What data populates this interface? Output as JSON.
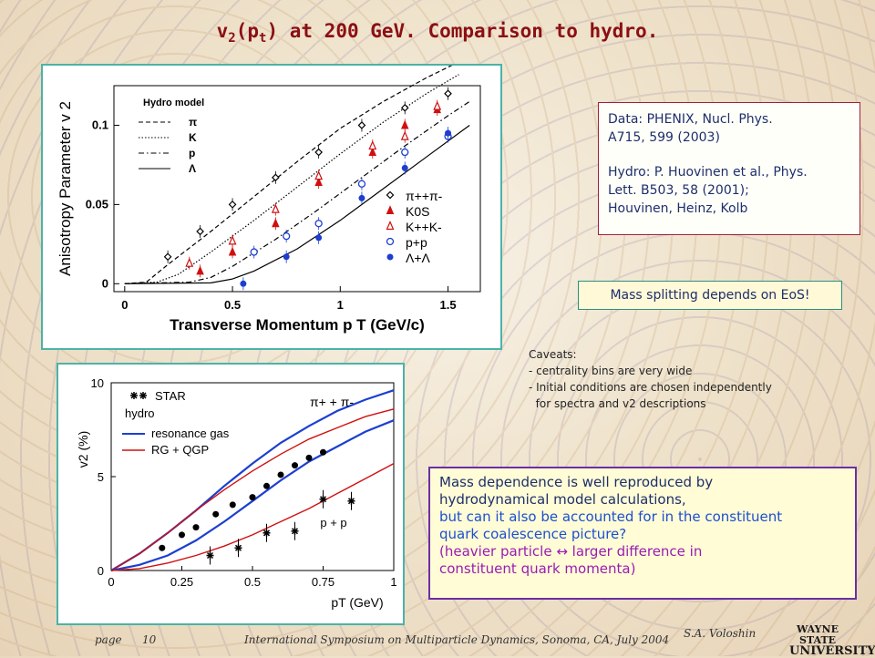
{
  "title": {
    "main": "v",
    "sub": "2",
    "paren_open": "(p",
    "paren_sub": "t",
    "rest": ") at 200 GeV. Comparison to hydro."
  },
  "ref_box": {
    "l1": "Data: PHENIX, Nucl. Phys.",
    "l2": "A715, 599 (2003)",
    "l3": "Hydro: P. Huovinen et al., Phys.",
    "l4": "Lett. B503, 58 (2001);",
    "l5": "Houvinen, Heinz, Kolb"
  },
  "mass_splitting": "Mass splitting depends on EoS!",
  "caveats": [
    "Caveats:",
    "- centrality bins are very wide",
    "- Initial conditions are chosen independently",
    "  for spectra and v2 descriptions"
  ],
  "mass_dependence": {
    "l1": "Mass dependence is well reproduced by",
    "l2": "hydrodynamical model calculations,",
    "l3": "but can it also be accounted for in the constituent",
    "l4": "quark coalescence picture?",
    "l5": "(heavier particle  ↔ larger difference in",
    "l6": "constituent quark momenta)"
  },
  "footer": {
    "page": "page",
    "page_num": "10",
    "conference": "International Symposium on Multiparticle  Dynamics, Sonoma, CA, July 2004",
    "author": "S.A. Voloshin"
  },
  "logo": {
    "l1": "WAYNE STATE",
    "l2": "UNIVERSITY"
  },
  "chart_data": [
    {
      "type": "scatter",
      "xlabel": "Transverse Momentum p T (GeV/c)",
      "ylabel": "Anisotropy Parameter v 2",
      "xlim": [
        -0.05,
        1.65
      ],
      "ylim": [
        -0.005,
        0.125
      ],
      "xticks": [
        "0",
        "0.5",
        "1",
        "1.5"
      ],
      "yticks": [
        "0",
        "0.05",
        "0.1"
      ],
      "hydro_legend": {
        "title": "Hydro model",
        "items": [
          "π",
          "K",
          "p",
          "Λ"
        ]
      },
      "hydro_curves": [
        {
          "name": "π",
          "style": "dashed",
          "x": [
            0,
            0.1,
            0.2,
            0.4,
            0.6,
            0.8,
            1.0,
            1.2,
            1.4,
            1.55
          ],
          "y": [
            0,
            0.001,
            0.012,
            0.033,
            0.055,
            0.077,
            0.098,
            0.115,
            0.13,
            0.14
          ]
        },
        {
          "name": "K",
          "style": "dotted",
          "x": [
            0,
            0.15,
            0.25,
            0.4,
            0.6,
            0.8,
            1.0,
            1.2,
            1.4,
            1.55
          ],
          "y": [
            0,
            0.001,
            0.006,
            0.02,
            0.04,
            0.061,
            0.082,
            0.102,
            0.12,
            0.132
          ]
        },
        {
          "name": "p",
          "style": "dashdot",
          "x": [
            0,
            0.3,
            0.4,
            0.5,
            0.7,
            0.9,
            1.1,
            1.3,
            1.5,
            1.6
          ],
          "y": [
            0,
            0.001,
            0.004,
            0.011,
            0.028,
            0.047,
            0.067,
            0.087,
            0.106,
            0.115
          ]
        },
        {
          "name": "Λ",
          "style": "solid",
          "x": [
            0,
            0.4,
            0.5,
            0.6,
            0.8,
            1.0,
            1.2,
            1.4,
            1.6
          ],
          "y": [
            0,
            0.0005,
            0.003,
            0.008,
            0.022,
            0.04,
            0.06,
            0.08,
            0.1
          ]
        }
      ],
      "series": [
        {
          "name": "π++π-",
          "marker": "diamond",
          "color": "#000000",
          "x": [
            0.2,
            0.35,
            0.5,
            0.7,
            0.9,
            1.1,
            1.3,
            1.5
          ],
          "y": [
            0.017,
            0.033,
            0.05,
            0.067,
            0.083,
            0.1,
            0.111,
            0.12
          ]
        },
        {
          "name": "K0S",
          "marker": "triangle",
          "color": "#d01010",
          "x": [
            0.35,
            0.5,
            0.7,
            0.9,
            1.15,
            1.3,
            1.45
          ],
          "y": [
            0.008,
            0.02,
            0.038,
            0.064,
            0.083,
            0.1,
            0.11
          ]
        },
        {
          "name": "K++K-",
          "marker": "triangle-open",
          "color": "#d01010",
          "x": [
            0.3,
            0.5,
            0.7,
            0.9,
            1.15,
            1.3,
            1.45
          ],
          "y": [
            0.013,
            0.027,
            0.047,
            0.068,
            0.087,
            0.093,
            0.112
          ]
        },
        {
          "name": "p+p",
          "marker": "circle-open",
          "color": "#1c3fd0",
          "x": [
            0.6,
            0.75,
            0.9,
            1.1,
            1.3,
            1.5
          ],
          "y": [
            0.02,
            0.03,
            0.038,
            0.063,
            0.083,
            0.093
          ]
        },
        {
          "name": "Λ+Λ",
          "marker": "circle",
          "color": "#1c3fd0",
          "x": [
            0.55,
            0.75,
            0.9,
            1.1,
            1.3,
            1.5
          ],
          "y": [
            0.0,
            0.017,
            0.029,
            0.054,
            0.073,
            0.095
          ]
        }
      ]
    },
    {
      "type": "line",
      "xlabel": "pT (GeV)",
      "ylabel": "v2 (%)",
      "xlim": [
        0,
        1.0
      ],
      "ylim": [
        0,
        10
      ],
      "xticks": [
        "0",
        "0.25",
        "0.5",
        "0.75",
        "1"
      ],
      "yticks": [
        "0",
        "5",
        "10"
      ],
      "legend": [
        "STAR",
        "hydro",
        "resonance gas",
        "RG + QGP"
      ],
      "labels": {
        "pion": "π+ + π-",
        "proton": "p + p"
      },
      "curves": [
        {
          "name": "resonance gas π",
          "color": "#1c3fd0",
          "x": [
            0,
            0.1,
            0.2,
            0.3,
            0.4,
            0.5,
            0.6,
            0.7,
            0.8,
            0.9,
            1.0
          ],
          "y": [
            0,
            0.9,
            2.0,
            3.2,
            4.5,
            5.7,
            6.8,
            7.7,
            8.5,
            9.1,
            9.6
          ]
        },
        {
          "name": "RG+QGP π",
          "color": "#d01010",
          "x": [
            0,
            0.1,
            0.2,
            0.3,
            0.4,
            0.5,
            0.6,
            0.7,
            0.8,
            0.9,
            1.0
          ],
          "y": [
            0,
            0.9,
            2.0,
            3.2,
            4.3,
            5.3,
            6.2,
            7.0,
            7.6,
            8.2,
            8.6
          ]
        },
        {
          "name": "resonance gas p",
          "color": "#1c3fd0",
          "x": [
            0,
            0.1,
            0.2,
            0.3,
            0.4,
            0.5,
            0.6,
            0.7,
            0.8,
            0.9,
            1.0
          ],
          "y": [
            0,
            0.3,
            0.8,
            1.6,
            2.6,
            3.7,
            4.8,
            5.8,
            6.6,
            7.4,
            8.0
          ]
        },
        {
          "name": "RG+QGP p",
          "color": "#d01010",
          "x": [
            0,
            0.1,
            0.2,
            0.3,
            0.4,
            0.5,
            0.6,
            0.7,
            0.8,
            0.9,
            1.0
          ],
          "y": [
            0,
            0.1,
            0.4,
            0.8,
            1.3,
            1.9,
            2.6,
            3.3,
            4.1,
            4.9,
            5.7
          ]
        }
      ],
      "series": [
        {
          "name": "STAR π",
          "marker": "circle",
          "x": [
            0.18,
            0.25,
            0.3,
            0.37,
            0.43,
            0.5,
            0.55,
            0.6,
            0.65,
            0.7,
            0.75
          ],
          "y": [
            1.2,
            1.9,
            2.3,
            3.0,
            3.5,
            3.9,
            4.5,
            5.1,
            5.6,
            6.0,
            6.3
          ]
        },
        {
          "name": "STAR p",
          "marker": "star",
          "x": [
            0.35,
            0.45,
            0.55,
            0.65,
            0.75,
            0.85
          ],
          "y": [
            0.8,
            1.2,
            2.0,
            2.1,
            3.8,
            3.7
          ]
        }
      ]
    }
  ]
}
